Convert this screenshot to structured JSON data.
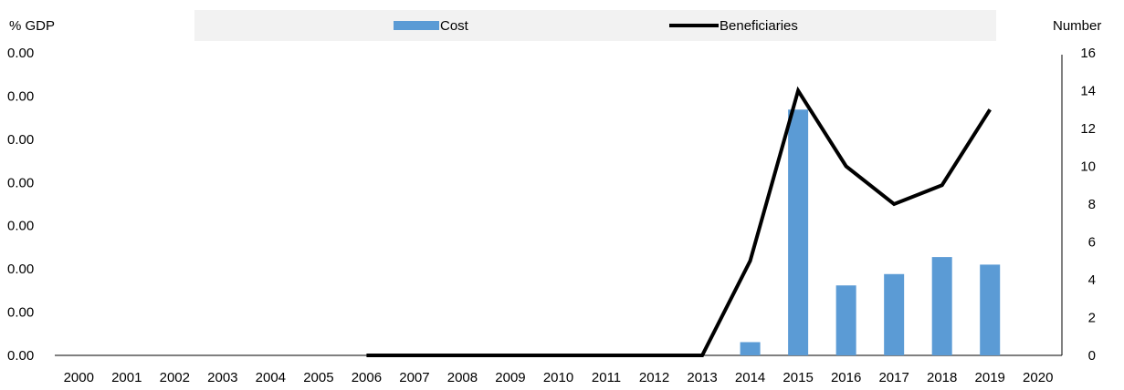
{
  "chart_data": {
    "type": "bar",
    "title": "",
    "y_left_label": "% GDP",
    "y_right_label": "Number",
    "categories": [
      "2000",
      "2001",
      "2002",
      "2003",
      "2004",
      "2005",
      "2006",
      "2007",
      "2008",
      "2009",
      "2010",
      "2011",
      "2012",
      "2013",
      "2014",
      "2015",
      "2016",
      "2017",
      "2018",
      "2019",
      "2020"
    ],
    "y_left_ticks": [
      "0.00",
      "0.00",
      "0.00",
      "0.00",
      "0.00",
      "0.00",
      "0.00",
      "0.00"
    ],
    "y_right_ticks": [
      "0",
      "2",
      "4",
      "6",
      "8",
      "10",
      "12",
      "14",
      "16"
    ],
    "y_right_lim": [
      0,
      16
    ],
    "legend_position": "top",
    "colors": {
      "cost": "#5B9BD5",
      "beneficiaries": "#000000",
      "legend_bg": "#F2F2F2"
    },
    "series": [
      {
        "name": "Cost",
        "type": "bar",
        "axis": "left",
        "values": [
          null,
          null,
          null,
          null,
          null,
          null,
          null,
          null,
          null,
          null,
          null,
          null,
          null,
          null,
          0.7,
          13.0,
          3.7,
          4.3,
          5.2,
          4.8,
          null
        ],
        "value_note_unit_scale": "right-axis equivalent"
      },
      {
        "name": "Beneficiaries",
        "type": "line",
        "axis": "right",
        "values": [
          null,
          null,
          null,
          null,
          null,
          null,
          0,
          0,
          0,
          0,
          0,
          0,
          0,
          0,
          5,
          14,
          10,
          8,
          9,
          13,
          null
        ]
      }
    ]
  }
}
